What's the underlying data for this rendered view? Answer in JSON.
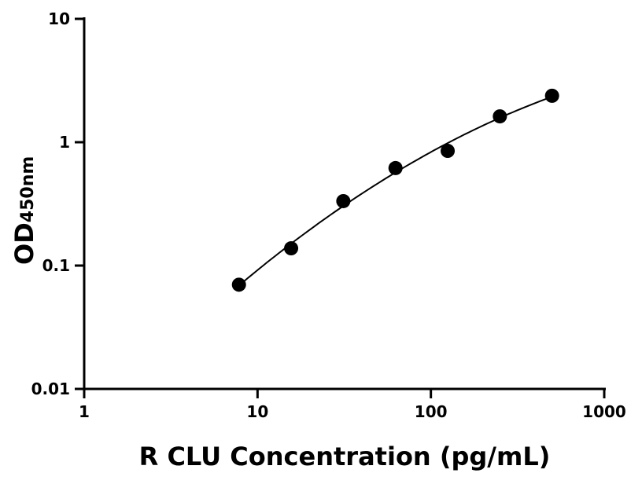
{
  "chart_data": {
    "type": "scatter",
    "xlabel": "R CLU Concentration (pg/mL)",
    "ylabel_main": "OD",
    "ylabel_sub": "450nm",
    "xscale": "log",
    "yscale": "log",
    "xlim": [
      1,
      1000
    ],
    "ylim": [
      0.01,
      10
    ],
    "xticks": [
      "1",
      "10",
      "100",
      "1000"
    ],
    "yticks": [
      "0.01",
      "0.1",
      "1",
      "10"
    ],
    "grid": false,
    "fit_curve": true,
    "marker_color": "#000000",
    "series": [
      {
        "x": [
          7.8125,
          15.625,
          31.25,
          62.5,
          125,
          250,
          500
        ],
        "y": [
          0.07,
          0.138,
          0.333,
          0.617,
          0.851,
          1.62,
          2.38
        ]
      }
    ]
  }
}
